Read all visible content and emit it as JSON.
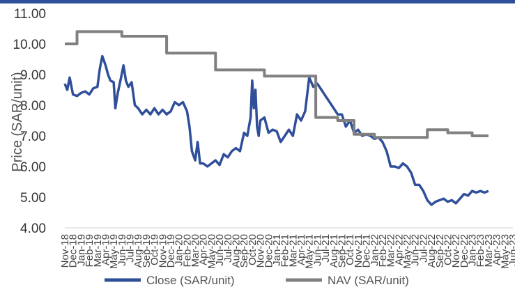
{
  "chart_data": {
    "type": "line",
    "title": "",
    "xlabel": "",
    "ylabel": "Price (SAR/unit)",
    "ylim": [
      4,
      11
    ],
    "yticks": [
      "4.00",
      "5.00",
      "6.00",
      "7.00",
      "8.00",
      "9.00",
      "10.00",
      "11.00"
    ],
    "xlim": [
      0,
      55
    ],
    "x_tick_labels": [
      "Nov-18",
      "Dec-18",
      "Jan-19",
      "Feb-19",
      "Mar-19",
      "Apr-19",
      "May-19",
      "Jun-19",
      "Jul-19",
      "Aug-19",
      "Sep-19",
      "Oct-19",
      "Nov-19",
      "Dec-19",
      "Jan-20",
      "Feb-20",
      "Mar-20",
      "Apr-20",
      "May-20",
      "Jun-20",
      "Jul-20",
      "Aug-20",
      "Sep-20",
      "Oct-20",
      "Nov-20",
      "Dec-20",
      "Jan-21",
      "Feb-21",
      "Mar-21",
      "Apr-21",
      "May-21",
      "Jun-21",
      "Jul-21",
      "Aug-21",
      "Sep-21",
      "Oct-21",
      "Nov-21",
      "Dec-21",
      "Jan-22",
      "Feb-22",
      "Mar-22",
      "Apr-22",
      "May-22",
      "Jun-22",
      "Jul-22",
      "Aug-22",
      "Sep-22",
      "Oct-22",
      "Nov-22",
      "Dec-22",
      "Jan-23",
      "Feb-23",
      "Mar-23",
      "Apr-23",
      "May-23",
      "Jun-23"
    ],
    "grid": false,
    "legend_position": "bottom",
    "series": [
      {
        "name": "Close (SAR/unit)",
        "color": "#2F4F9A",
        "style": "line",
        "points": [
          [
            0,
            8.7
          ],
          [
            0.3,
            8.5
          ],
          [
            0.6,
            8.9
          ],
          [
            1,
            8.35
          ],
          [
            1.5,
            8.3
          ],
          [
            2,
            8.4
          ],
          [
            2.5,
            8.45
          ],
          [
            3,
            8.35
          ],
          [
            3.5,
            8.55
          ],
          [
            4,
            8.6
          ],
          [
            4.3,
            9.2
          ],
          [
            4.6,
            9.6
          ],
          [
            5,
            9.3
          ],
          [
            5.3,
            9.0
          ],
          [
            5.6,
            8.8
          ],
          [
            6,
            8.75
          ],
          [
            6.2,
            7.9
          ],
          [
            6.5,
            8.4
          ],
          [
            6.9,
            8.9
          ],
          [
            7.2,
            9.3
          ],
          [
            7.5,
            8.8
          ],
          [
            7.8,
            8.6
          ],
          [
            8.2,
            8.75
          ],
          [
            8.6,
            8.0
          ],
          [
            9,
            7.9
          ],
          [
            9.5,
            7.7
          ],
          [
            10,
            7.85
          ],
          [
            10.5,
            7.7
          ],
          [
            11,
            7.9
          ],
          [
            11.5,
            7.7
          ],
          [
            12,
            7.85
          ],
          [
            12.5,
            7.7
          ],
          [
            13,
            7.8
          ],
          [
            13.5,
            8.1
          ],
          [
            14,
            8.0
          ],
          [
            14.5,
            8.1
          ],
          [
            15,
            7.8
          ],
          [
            15.3,
            7.3
          ],
          [
            15.6,
            6.5
          ],
          [
            16,
            6.2
          ],
          [
            16.3,
            6.8
          ],
          [
            16.6,
            6.1
          ],
          [
            17,
            6.1
          ],
          [
            17.5,
            6.0
          ],
          [
            18,
            6.1
          ],
          [
            18.5,
            6.2
          ],
          [
            19,
            6.05
          ],
          [
            19.5,
            6.4
          ],
          [
            20,
            6.3
          ],
          [
            20.5,
            6.5
          ],
          [
            21,
            6.6
          ],
          [
            21.5,
            6.5
          ],
          [
            22,
            7.1
          ],
          [
            22.4,
            7.0
          ],
          [
            22.8,
            7.6
          ],
          [
            23,
            8.8
          ],
          [
            23.2,
            7.9
          ],
          [
            23.4,
            8.5
          ],
          [
            23.6,
            7.3
          ],
          [
            23.8,
            7.0
          ],
          [
            24,
            7.5
          ],
          [
            24.5,
            7.6
          ],
          [
            25,
            7.1
          ],
          [
            25.5,
            7.2
          ],
          [
            26,
            7.15
          ],
          [
            26.5,
            6.8
          ],
          [
            27,
            7.0
          ],
          [
            27.5,
            7.2
          ],
          [
            28,
            7.0
          ],
          [
            28.5,
            7.7
          ],
          [
            29,
            7.5
          ],
          [
            29.5,
            7.8
          ],
          [
            30,
            8.9
          ],
          [
            30.5,
            8.6
          ],
          [
            31,
            8.7
          ],
          [
            31.5,
            8.5
          ],
          [
            32,
            8.3
          ],
          [
            32.5,
            8.1
          ],
          [
            33,
            7.9
          ],
          [
            33.5,
            7.7
          ],
          [
            34,
            7.7
          ],
          [
            34.5,
            7.3
          ],
          [
            35,
            7.5
          ],
          [
            35.5,
            7.1
          ],
          [
            36,
            7.2
          ],
          [
            36.5,
            7.0
          ],
          [
            37,
            7.05
          ],
          [
            37.5,
            7.0
          ],
          [
            38,
            6.9
          ],
          [
            38.5,
            6.95
          ],
          [
            39,
            6.8
          ],
          [
            39.5,
            6.5
          ],
          [
            40,
            6.0
          ],
          [
            40.5,
            6.0
          ],
          [
            41,
            5.95
          ],
          [
            41.5,
            6.1
          ],
          [
            42,
            6.0
          ],
          [
            42.5,
            5.8
          ],
          [
            43,
            5.4
          ],
          [
            43.5,
            5.4
          ],
          [
            44,
            5.2
          ],
          [
            44.5,
            4.9
          ],
          [
            45,
            4.75
          ],
          [
            45.5,
            4.85
          ],
          [
            46,
            4.9
          ],
          [
            46.5,
            4.95
          ],
          [
            47,
            4.85
          ],
          [
            47.5,
            4.9
          ],
          [
            48,
            4.8
          ],
          [
            48.5,
            4.95
          ],
          [
            49,
            5.1
          ],
          [
            49.5,
            5.05
          ],
          [
            50,
            5.2
          ],
          [
            50.5,
            5.15
          ],
          [
            51,
            5.2
          ],
          [
            51.5,
            5.15
          ],
          [
            52,
            5.2
          ]
        ]
      },
      {
        "name": "NAV (SAR/unit)",
        "color": "#808080",
        "style": "step",
        "points": [
          [
            0,
            10.0
          ],
          [
            1.5,
            10.4
          ],
          [
            7,
            10.25
          ],
          [
            12.5,
            9.7
          ],
          [
            18.5,
            9.15
          ],
          [
            24.5,
            8.95
          ],
          [
            29,
            8.95
          ],
          [
            30.8,
            7.6
          ],
          [
            33.5,
            7.5
          ],
          [
            35.5,
            7.05
          ],
          [
            38,
            6.95
          ],
          [
            44.5,
            7.2
          ],
          [
            47,
            7.1
          ],
          [
            50,
            7.0
          ],
          [
            52,
            7.0
          ]
        ]
      }
    ]
  }
}
